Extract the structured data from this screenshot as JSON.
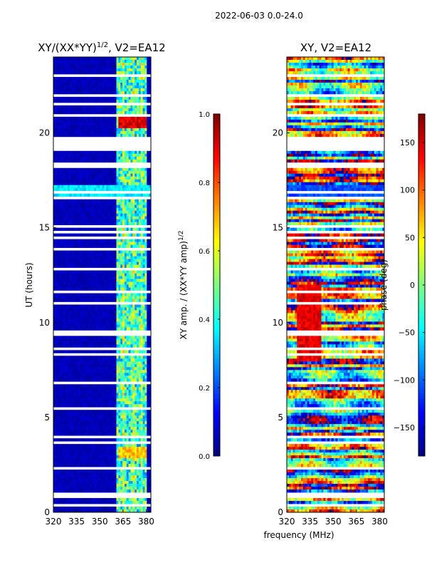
{
  "figure": {
    "suptitle": "2022-06-03 0.0-24.0",
    "shared_xlabel": "frequency (MHz)"
  },
  "chart_data": [
    {
      "type": "heatmap",
      "title": "XY/(XX*YY)^1/2, V2=EA12",
      "title_parts": {
        "main": "XY/(XX*YY)",
        "exponent": "1/2",
        "suffix": ", V2=EA12"
      },
      "xlabel": "frequency (MHz)",
      "ylabel": "UT (hours)",
      "xlim": [
        320,
        383
      ],
      "ylim": [
        0,
        24
      ],
      "xticks": [
        320,
        335,
        350,
        365,
        380
      ],
      "yticks": [
        0,
        5,
        10,
        15,
        20
      ],
      "colorbar": {
        "label": "XY amp. / (XX*YY amp)^1/2",
        "label_parts": {
          "main": "XY amp. / (XX*YY amp)",
          "exponent": "1/2"
        },
        "range": [
          0.0,
          1.0
        ],
        "ticks": [
          "0.0",
          "0.2",
          "0.4",
          "0.6",
          "0.8",
          "1.0"
        ],
        "colormap": "jet"
      }
    },
    {
      "type": "heatmap",
      "title": "XY, V2=EA12",
      "xlabel": "frequency (MHz)",
      "ylabel": "",
      "xlim": [
        320,
        383
      ],
      "ylim": [
        0,
        24
      ],
      "xticks": [
        320,
        335,
        350,
        365,
        380
      ],
      "yticks": [
        0,
        5,
        10,
        15,
        20
      ],
      "colorbar": {
        "label": "phase (deg)",
        "range": [
          -180,
          180
        ],
        "ticks": [
          "−150",
          "−100",
          "−50",
          "0",
          "50",
          "100",
          "150"
        ],
        "tick_values": [
          -150,
          -100,
          -50,
          0,
          50,
          100,
          150
        ],
        "colormap": "jet"
      }
    }
  ]
}
